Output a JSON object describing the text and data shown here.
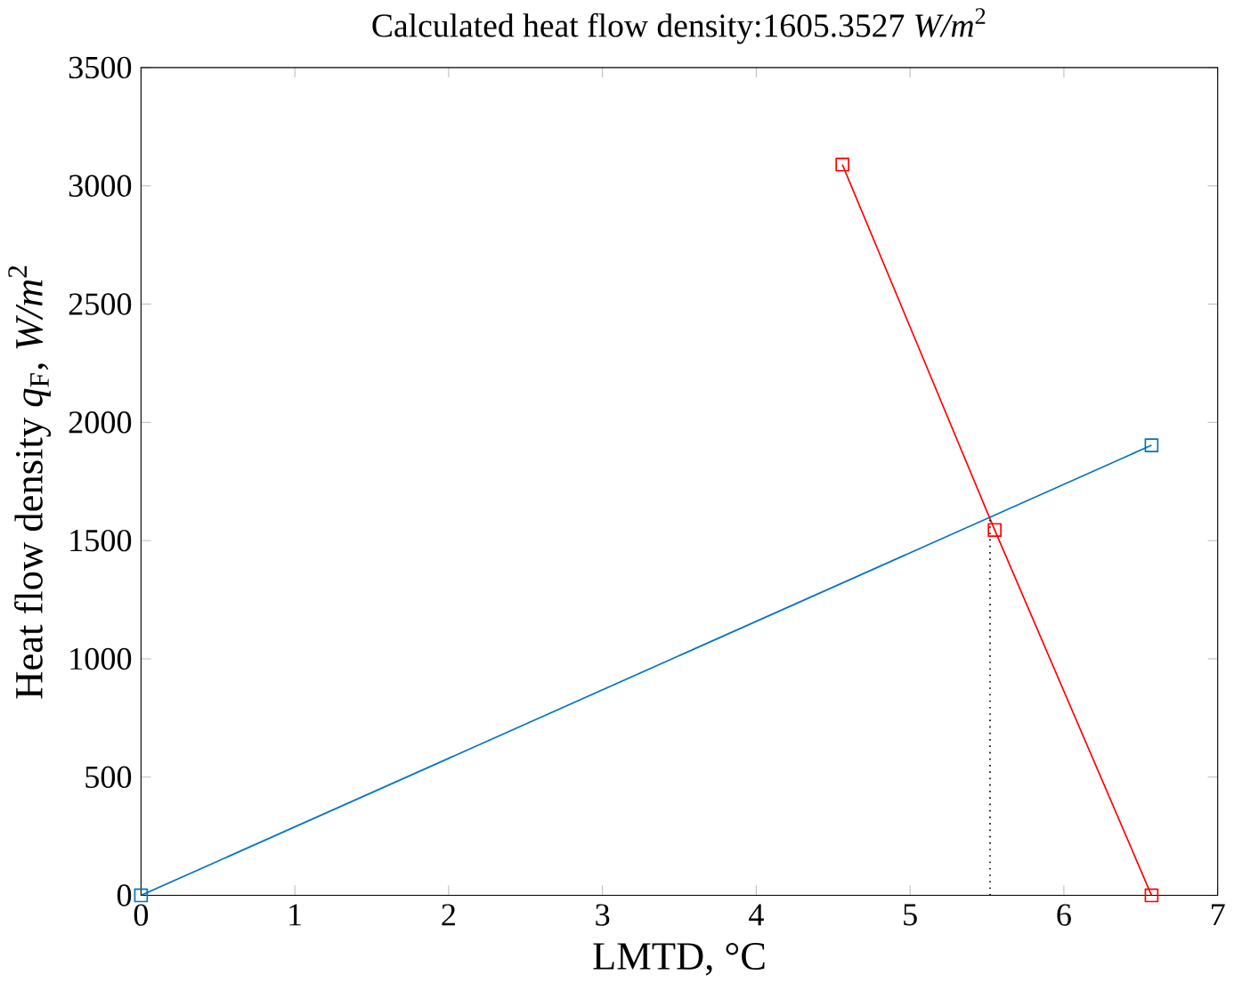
{
  "chart_data": {
    "type": "line",
    "title": "Calculated heat flow density:1605.3527 *W/m*$^{2}$",
    "xlabel": "LMTD, °C",
    "ylabel": "Heat flow density *q*$_{F}$, *W/m*$^{2}$",
    "xlim": [
      0,
      7
    ],
    "ylim": [
      0,
      3500
    ],
    "xticks": [
      0,
      1,
      2,
      3,
      4,
      5,
      6,
      7
    ],
    "yticks": [
      0,
      500,
      1000,
      1500,
      2000,
      2500,
      3000,
      3500
    ],
    "grid": false,
    "series": [
      {
        "color": "#0072bd",
        "x": [
          0,
          6.57
        ],
        "values": [
          0,
          1903
        ],
        "marker": "square",
        "line_style": "solid"
      },
      {
        "color": "#ff0000",
        "x": [
          4.56,
          5.55,
          6.57
        ],
        "values": [
          3090,
          1545,
          0
        ],
        "marker": "square",
        "line_style": "solid"
      },
      {
        "color": "#000000",
        "x": [
          5.52,
          5.52
        ],
        "values": [
          0,
          1605
        ],
        "marker": "none",
        "line_style": "dotted"
      }
    ]
  }
}
